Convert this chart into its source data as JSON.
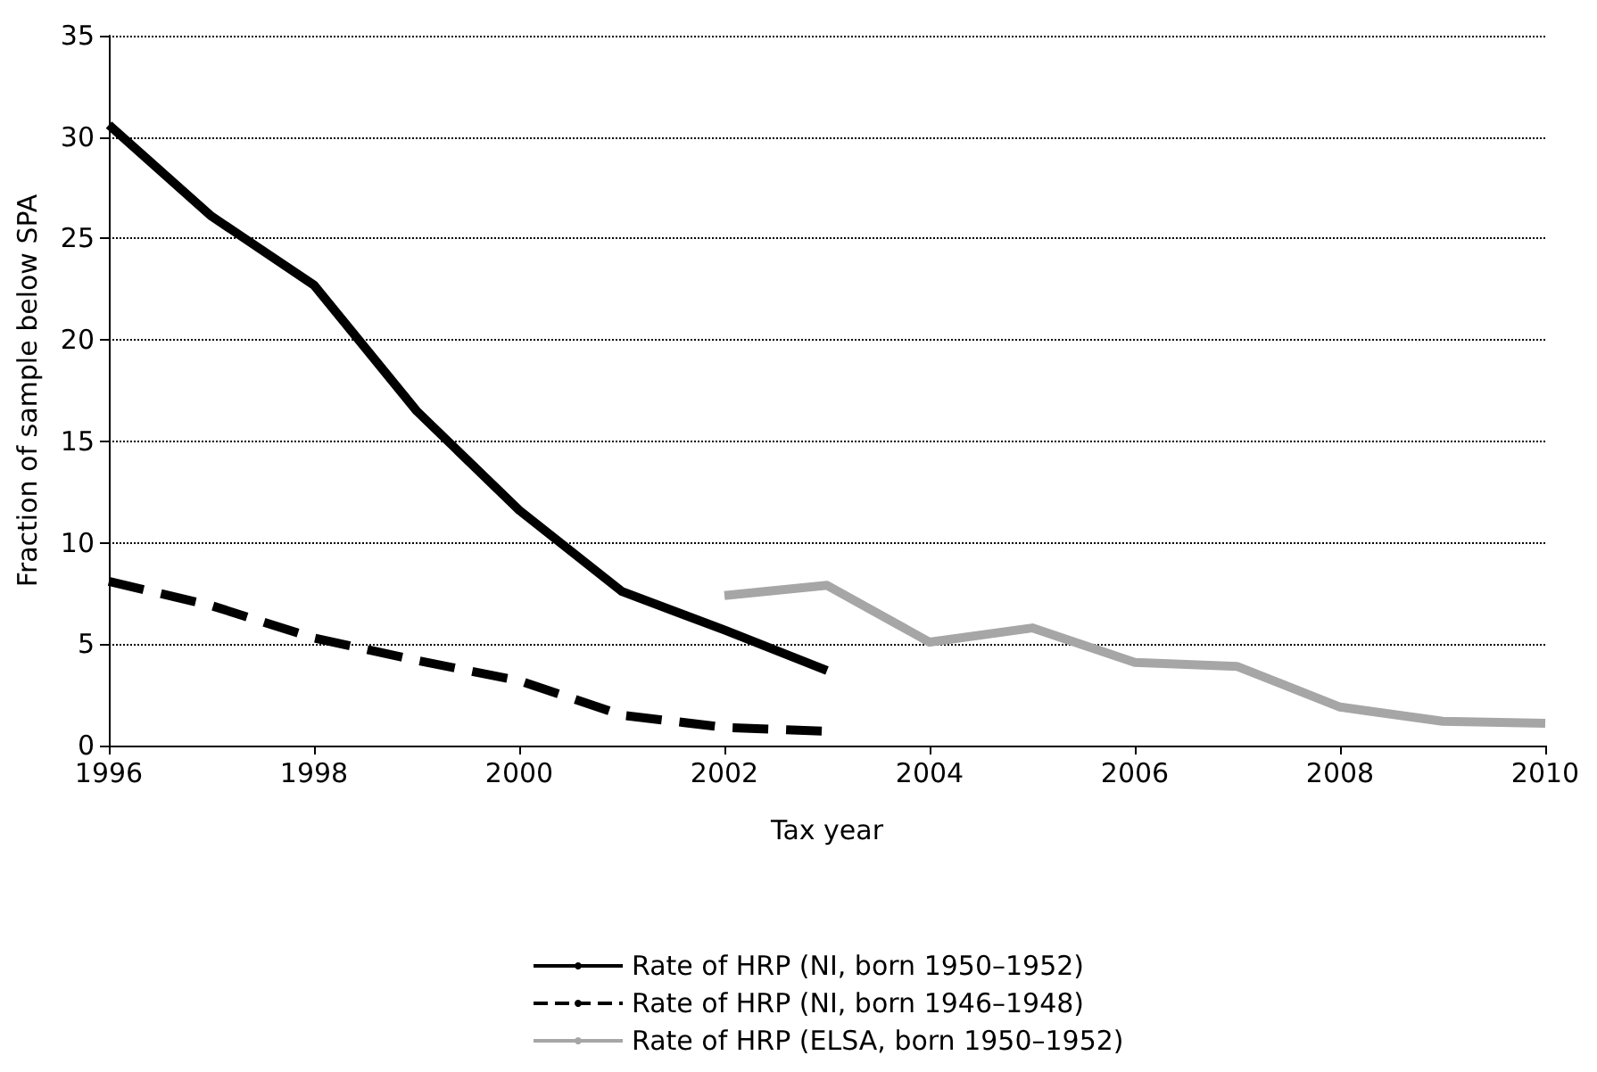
{
  "chart_data": {
    "type": "line",
    "xlabel": "Tax year",
    "ylabel": "Fraction of sample below SPA",
    "xlim": [
      1996,
      2010
    ],
    "xticks": [
      1996,
      1998,
      2000,
      2002,
      2004,
      2006,
      2008,
      2010
    ],
    "ylim": [
      0,
      35
    ],
    "yticks": [
      0,
      5,
      10,
      15,
      20,
      25,
      30,
      35
    ],
    "grid": "y",
    "legend": "bottom",
    "marker": "none",
    "series": [
      {
        "name": "Rate of HRP (NI, born 1950–1952)",
        "color": "#000000",
        "line_style": "solid",
        "x": [
          1996,
          1997,
          1998,
          1999,
          2000,
          2001,
          2002,
          2003
        ],
        "values": [
          30.6,
          26.1,
          22.7,
          16.5,
          11.6,
          7.6,
          5.7,
          3.7
        ]
      },
      {
        "name": "Rate of HRP (NI, born 1946–1948)",
        "color": "#000000",
        "line_style": "dashed",
        "x": [
          1996,
          1997,
          1998,
          1999,
          2000,
          2001,
          2002,
          2003
        ],
        "values": [
          8.1,
          6.9,
          5.3,
          4.2,
          3.2,
          1.5,
          0.9,
          0.7
        ]
      },
      {
        "name": "Rate of HRP (ELSA, born 1950–1952)",
        "color": "#a6a6a6",
        "line_style": "solid",
        "x": [
          2002,
          2003,
          2004,
          2005,
          2006,
          2007,
          2008,
          2009,
          2010
        ],
        "values": [
          7.4,
          7.9,
          5.1,
          5.8,
          4.1,
          3.9,
          1.9,
          1.2,
          1.1
        ]
      }
    ]
  }
}
